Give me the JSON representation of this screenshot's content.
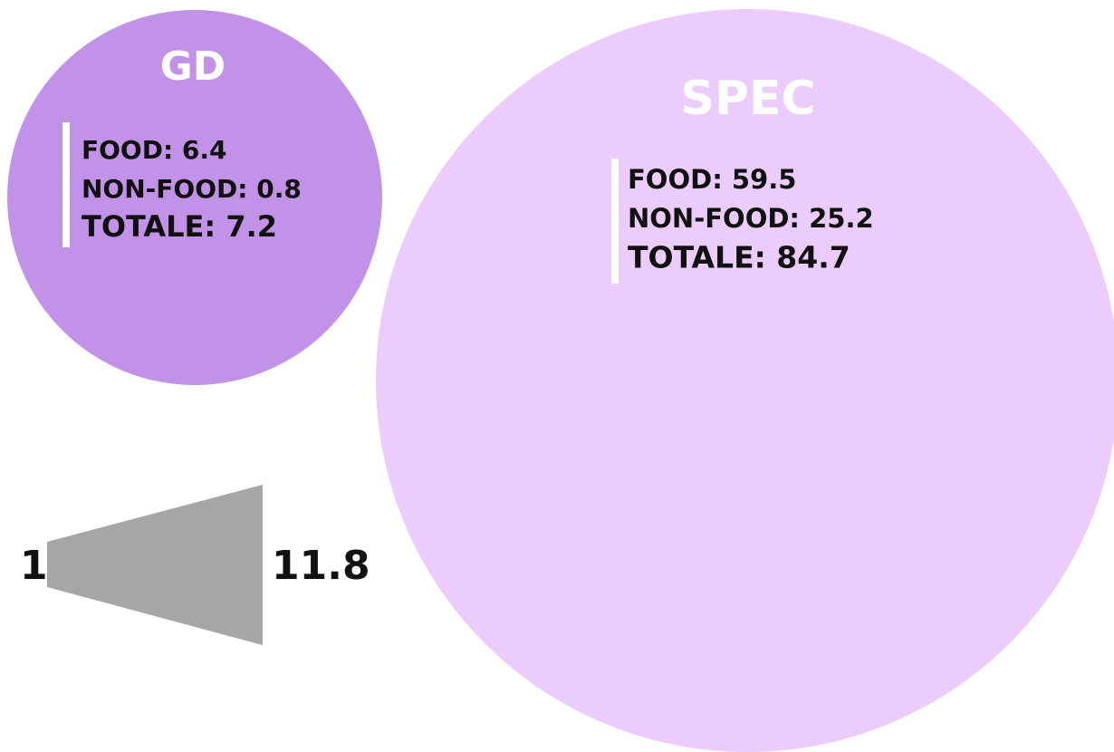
{
  "circles": [
    {
      "title": "GD",
      "lines": [
        "FOOD: 6.4",
        "NON-FOOD: 0.8",
        "TOTALE: 7.2"
      ]
    },
    {
      "title": "SPEC",
      "lines": [
        "FOOD: 59.5",
        "NON-FOOD: 25.2",
        "TOTALE: 84.7"
      ]
    }
  ],
  "ratio": {
    "left": "1",
    "right": "11.8"
  }
}
